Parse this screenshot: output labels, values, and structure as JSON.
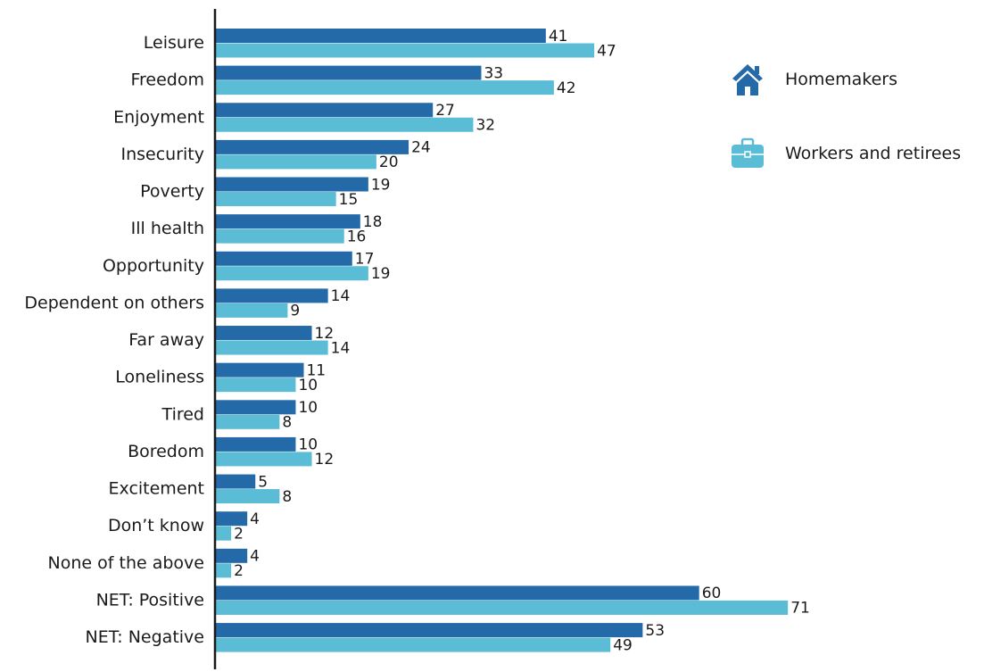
{
  "chart_data": {
    "type": "bar",
    "orientation": "horizontal",
    "categories": [
      "Leisure",
      "Freedom",
      "Enjoyment",
      "Insecurity",
      "Poverty",
      "Ill health",
      "Opportunity",
      "Dependent on others",
      "Far away",
      "Loneliness",
      "Tired",
      "Boredom",
      "Excitement",
      "Don’t know",
      "None of the above",
      "NET: Positive",
      "NET: Negative"
    ],
    "series": [
      {
        "name": "Homemakers",
        "color": "#2469a8",
        "icon": "house-icon",
        "values": [
          41,
          33,
          27,
          24,
          19,
          18,
          17,
          14,
          12,
          11,
          10,
          10,
          5,
          4,
          4,
          60,
          53
        ]
      },
      {
        "name": "Workers and retirees",
        "color": "#5bbcd6",
        "icon": "briefcase-icon",
        "values": [
          47,
          42,
          32,
          20,
          15,
          16,
          19,
          9,
          14,
          10,
          8,
          12,
          8,
          2,
          2,
          71,
          49
        ]
      }
    ],
    "xlim": [
      0,
      71
    ],
    "data_labels": true,
    "grid": false,
    "legend_position": "right"
  }
}
